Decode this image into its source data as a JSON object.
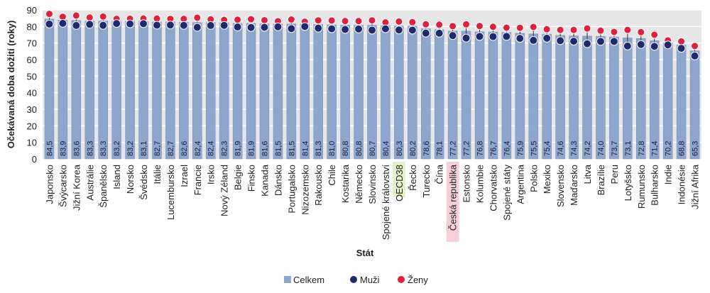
{
  "chart_data": {
    "type": "bar",
    "title": "",
    "xlabel": "Stát",
    "ylabel": "Očekávaná doba dožití (roky)",
    "ylim": [
      0,
      90
    ],
    "yticks": [
      0,
      10,
      20,
      30,
      40,
      50,
      60,
      70,
      80,
      90
    ],
    "grid": true,
    "legend_placement": "bottom",
    "colors": {
      "Celkem": "#8ea6cc",
      "Muži": "#1f2a6e",
      "Ženy": "#e0203c",
      "highlight_oecd": "#e6f0c8",
      "highlight_cz": "#f6d0d8"
    },
    "highlighted": {
      "OECD38": "highlight_oecd",
      "Česká republika": "highlight_cz"
    },
    "categories": [
      "Japonsko",
      "Švýcarsko",
      "Jižní Korea",
      "Austrálie",
      "Španělsko",
      "Island",
      "Norsko",
      "Švédsko",
      "Itálie",
      "Lucembursko",
      "Izrael",
      "Francie",
      "Irsko",
      "Nový Zéland",
      "Belgie",
      "Finsko",
      "Kanada",
      "Dánsko",
      "Portugalsko",
      "Nizozemsko",
      "Rakousko",
      "Chile",
      "Kostarika",
      "Německo",
      "Slovinsko",
      "Spojené království",
      "OECD38",
      "Řecko",
      "Turecko",
      "Čína",
      "Česká republika",
      "Estonsko",
      "Kolumbie",
      "Chorvatsko",
      "Spojené státy",
      "Argentina",
      "Polsko",
      "Mexiko",
      "Slovensko",
      "Maďarsko",
      "Litva",
      "Brazílie",
      "Peru",
      "Lotyšsko",
      "Rumunsko",
      "Bulharsko",
      "Indie",
      "Indonésie",
      "Jižní Afrika"
    ],
    "series": [
      {
        "name": "Celkem",
        "type": "bar",
        "values": [
          84.5,
          83.9,
          83.6,
          83.3,
          83.3,
          83.2,
          83.2,
          83.1,
          82.7,
          82.7,
          82.6,
          82.4,
          82.4,
          82.3,
          81.9,
          81.9,
          81.6,
          81.5,
          81.5,
          81.4,
          81.3,
          81.0,
          80.8,
          80.8,
          80.7,
          80.4,
          80.3,
          80.2,
          78.6,
          78.1,
          77.2,
          77.2,
          76.8,
          76.7,
          76.4,
          75.9,
          75.5,
          75.4,
          74.6,
          74.3,
          74.2,
          74.0,
          73.7,
          73.1,
          72.8,
          71.4,
          70.2,
          68.8,
          65.3
        ],
        "labels": [
          "84,5",
          "83,9",
          "83,6",
          "83,3",
          "83,3",
          "83,2",
          "83,2",
          "83,1",
          "82,7",
          "82,7",
          "82,6",
          "82,4",
          "82,4",
          "82,3",
          "81,9",
          "81,9",
          "81,6",
          "81,5",
          "81,5",
          "81,4",
          "81,3",
          "81,0",
          "80,8",
          "80,8",
          "80,7",
          "80,4",
          "80,3",
          "80,2",
          "78,6",
          "78,1",
          "77,2",
          "77,2",
          "76,8",
          "76,7",
          "76,4",
          "75,9",
          "75,5",
          "75,4",
          "74,6",
          "74,3",
          "74,2",
          "74,0",
          "73,7",
          "73,1",
          "72,8",
          "71,4",
          "70,2",
          "68,8",
          "65,3"
        ]
      },
      {
        "name": "Muži",
        "type": "point",
        "values": [
          81.5,
          81.9,
          80.6,
          81.3,
          80.7,
          81.8,
          81.6,
          81.7,
          80.8,
          80.9,
          80.7,
          79.5,
          80.6,
          80.7,
          79.7,
          79.4,
          79.5,
          79.8,
          78.7,
          80.0,
          79.0,
          78.6,
          78.2,
          78.5,
          77.8,
          78.6,
          77.9,
          77.8,
          76.0,
          75.9,
          74.5,
          73.0,
          74.0,
          73.9,
          74.0,
          72.8,
          71.6,
          72.9,
          71.4,
          71.1,
          69.6,
          71.0,
          71.0,
          68.2,
          69.1,
          68.0,
          68.9,
          66.8,
          62.2
        ]
      },
      {
        "name": "Ženy",
        "type": "point",
        "values": [
          87.6,
          85.9,
          86.6,
          85.4,
          86.0,
          84.6,
          84.7,
          84.8,
          84.8,
          84.6,
          84.6,
          85.3,
          84.3,
          84.0,
          84.1,
          84.4,
          83.8,
          83.2,
          84.2,
          82.9,
          83.7,
          83.6,
          83.3,
          83.3,
          83.7,
          82.5,
          83.0,
          82.6,
          81.3,
          81.1,
          80.2,
          81.3,
          80.3,
          79.8,
          79.3,
          79.2,
          79.7,
          78.3,
          77.9,
          77.9,
          78.8,
          77.5,
          76.7,
          77.9,
          76.6,
          75.0,
          71.6,
          71.0,
          68.2
        ]
      }
    ]
  }
}
